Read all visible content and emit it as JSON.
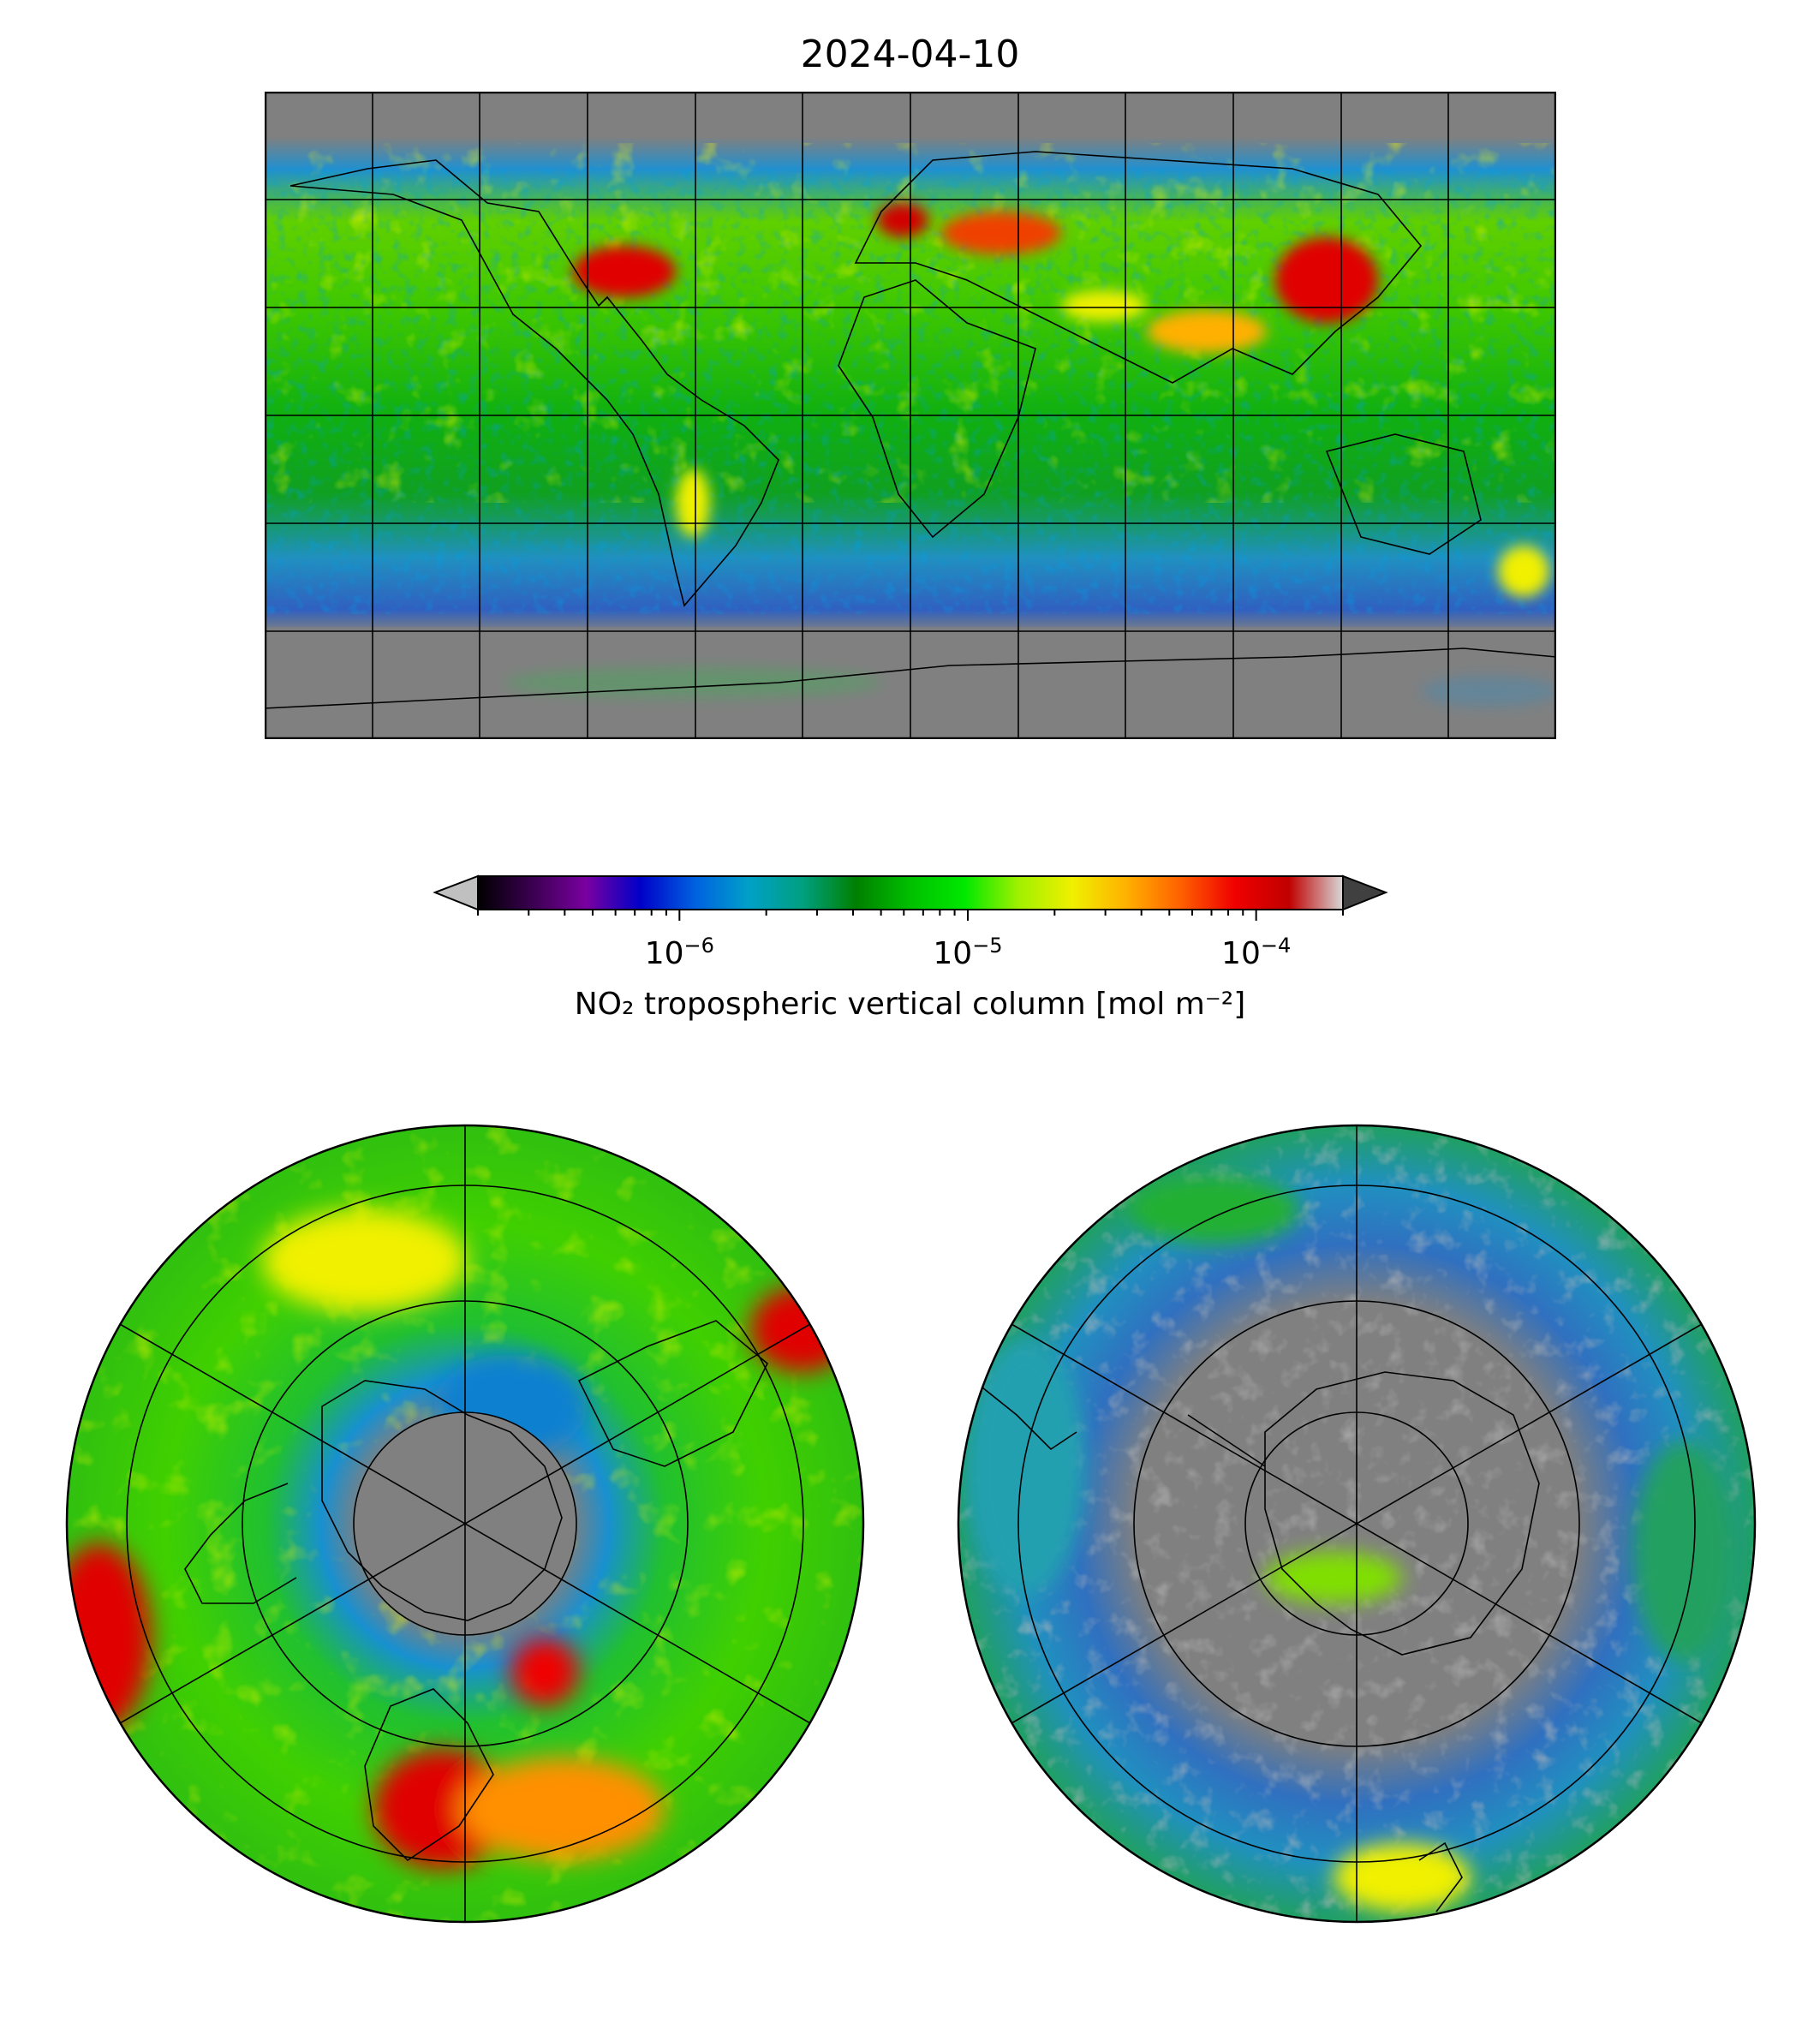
{
  "title": "2024-04-10",
  "colorbar": {
    "label": "NO₂ tropospheric vertical column [mol m⁻²]",
    "scale": "log",
    "range": [
      2e-07,
      0.0002
    ],
    "ticks": [
      {
        "base": "10",
        "exp": "−6",
        "value": 1e-06
      },
      {
        "base": "10",
        "exp": "−5",
        "value": 1e-05
      },
      {
        "base": "10",
        "exp": "−4",
        "value": 0.0001
      }
    ],
    "extend": "both",
    "colors": [
      "#000000",
      "#3a0050",
      "#7a00a0",
      "#0000c8",
      "#0060e0",
      "#00a0c8",
      "#00a080",
      "#008000",
      "#00c000",
      "#00e800",
      "#a0f000",
      "#f0f000",
      "#ffb000",
      "#ff6000",
      "#f00000",
      "#c00000",
      "#d8d8d8"
    ],
    "under_color": "#c0c0c0",
    "over_color": "#404040"
  },
  "colors": {
    "no_data": "#808080",
    "coastline": "#000000"
  }
}
